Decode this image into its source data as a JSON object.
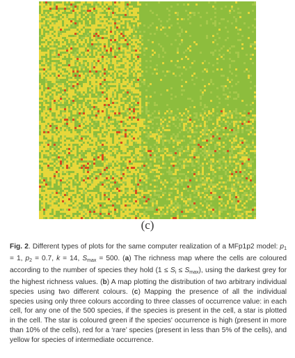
{
  "figure": {
    "panel_label": "(c)",
    "map": {
      "description": "Mapping the presence of all individual species using three colours",
      "colors": {
        "green": "#8dbd3d",
        "yellow": "#e6d73a",
        "red": "#d84a1e",
        "light_green": "#a6c84a"
      },
      "regions": [
        {
          "name": "left-mixed-yellow-green",
          "dominant": "yellow"
        },
        {
          "name": "top-right-green",
          "dominant": "green"
        },
        {
          "name": "bottom-right-mixed",
          "dominant": "green"
        }
      ]
    }
  },
  "caption": {
    "label": "Fig. 2",
    "t1": ". Different types of plots for the same computer realization of a MFp1p2 model: ",
    "p1_sym": "p",
    "p1_sub": "1",
    "p1_val": " = 1, ",
    "p2_sym": "p",
    "p2_sub": "2",
    "p2_val": " = 0.7, ",
    "k_sym": "k",
    "k_val": " = 14, ",
    "s_sym": "S",
    "s_sub": "max",
    "s_val": " = 500. (",
    "a_label": "a",
    "t2": ") The richness map where the cells are coloured according to the number of species they hold (1 ≤ ",
    "si_sym": "S",
    "si_sub": "i",
    "t3": " ≤ ",
    "smax2_sym": "S",
    "smax2_sub": "max",
    "t4": "), using the darkest grey for the highest richness values. (",
    "b_label": "b",
    "t5": ") A map plotting the distribution of two arbitrary individual species using two different colours. (",
    "c_label": "c",
    "t6": ") Mapping the presence of all the individual species using only three colours according to three classes of occurrence value: in each cell, for any one of the 500 species, if the species is present in the cell, a star is plotted in the cell. The star is coloured green if the species' occurrence is high (present in more than 10% of the cells), red for a ‘rare’ species (present in less than 5% of the cells), and yellow for species of intermediate occurrence."
  }
}
